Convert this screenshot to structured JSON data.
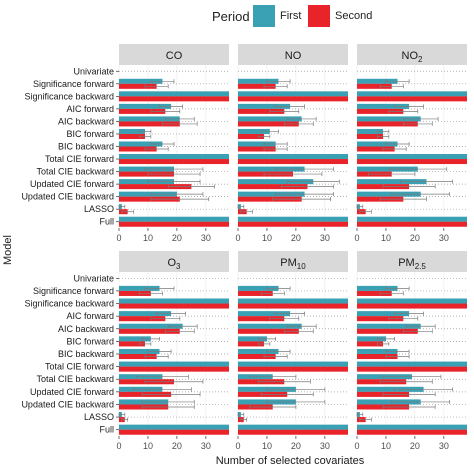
{
  "chart_data": {
    "type": "bar",
    "orientation": "horizontal",
    "legend": {
      "title": "Period",
      "placement": "top",
      "entries": [
        {
          "name": "First",
          "color": "#3aa0b4"
        },
        {
          "name": "Second",
          "color": "#e8242a"
        }
      ]
    },
    "ylabel": "Model",
    "xlabel": "Number of selected covariates",
    "xlim": [
      0,
      38
    ],
    "xticks": [
      "0",
      "10",
      "20",
      "30"
    ],
    "grid": true,
    "categories": [
      "Univariate",
      "Significance forward",
      "Significance backward",
      "AIC forward",
      "AIC backward",
      "BIC forward",
      "BIC backward",
      "Total CIE forward",
      "Total CIE backward",
      "Updated CIE forward",
      "Updated CIE backward",
      "LASSO",
      "Full"
    ],
    "panels": [
      {
        "title": "CO",
        "sub": "",
        "series": [
          {
            "name": "First",
            "values": [
              0,
              15,
              38,
              18,
              21,
              9,
              15,
              38,
              19,
              19,
              20,
              1,
              38
            ],
            "err": [
              0,
              4,
              0,
              4,
              5,
              2,
              4,
              0,
              10,
              9,
              9,
              1,
              0
            ]
          },
          {
            "name": "Second",
            "values": [
              0,
              13,
              38,
              16,
              21,
              9,
              13,
              38,
              19,
              25,
              21,
              3,
              38
            ],
            "err": [
              0,
              4,
              0,
              5,
              6,
              2,
              4,
              0,
              9,
              8,
              10,
              2,
              0
            ]
          }
        ]
      },
      {
        "title": "NO",
        "sub": "",
        "series": [
          {
            "name": "First",
            "values": [
              0,
              14,
              38,
              18,
              22,
              11,
              13,
              38,
              23,
              26,
              23,
              1,
              38
            ],
            "err": [
              0,
              4,
              0,
              5,
              5,
              3,
              4,
              0,
              10,
              9,
              10,
              1,
              0
            ]
          },
          {
            "name": "Second",
            "values": [
              0,
              13,
              38,
              16,
              21,
              9,
              13,
              38,
              19,
              24,
              22,
              3,
              38
            ],
            "err": [
              0,
              4,
              0,
              5,
              5,
              2,
              4,
              0,
              10,
              9,
              10,
              2,
              0
            ]
          }
        ]
      },
      {
        "title": "NO",
        "sub": "2",
        "series": [
          {
            "name": "First",
            "values": [
              0,
              14,
              38,
              18,
              22,
              9,
              14,
              38,
              21,
              24,
              22,
              1,
              38
            ],
            "err": [
              0,
              4,
              0,
              5,
              6,
              2,
              4,
              0,
              10,
              9,
              10,
              1,
              0
            ]
          },
          {
            "name": "Second",
            "values": [
              0,
              12,
              38,
              16,
              21,
              9,
              13,
              38,
              12,
              18,
              16,
              3,
              38
            ],
            "err": [
              0,
              4,
              0,
              5,
              5,
              2,
              4,
              0,
              8,
              9,
              8,
              2,
              0
            ]
          }
        ]
      },
      {
        "title": "O",
        "sub": "3",
        "series": [
          {
            "name": "First",
            "values": [
              0,
              14,
              38,
              18,
              22,
              11,
              14,
              38,
              15,
              15,
              17,
              1,
              38
            ],
            "err": [
              0,
              5,
              0,
              5,
              5,
              3,
              4,
              0,
              9,
              10,
              9,
              1,
              0
            ]
          },
          {
            "name": "Second",
            "values": [
              0,
              11,
              38,
              16,
              21,
              9,
              13,
              38,
              19,
              18,
              17,
              2,
              38
            ],
            "err": [
              0,
              4,
              0,
              5,
              5,
              2,
              4,
              0,
              10,
              10,
              9,
              1,
              0
            ]
          }
        ]
      },
      {
        "title": "PM",
        "sub": "10",
        "series": [
          {
            "name": "First",
            "values": [
              0,
              14,
              38,
              18,
              22,
              10,
              14,
              38,
              12,
              20,
              20,
              1,
              38
            ],
            "err": [
              0,
              4,
              0,
              5,
              5,
              3,
              4,
              0,
              8,
              10,
              10,
              1,
              0
            ]
          },
          {
            "name": "Second",
            "values": [
              0,
              12,
              38,
              16,
              21,
              9,
              13,
              38,
              16,
              17,
              12,
              2,
              38
            ],
            "err": [
              0,
              4,
              0,
              5,
              5,
              2,
              4,
              0,
              9,
              9,
              8,
              1,
              0
            ]
          }
        ]
      },
      {
        "title": "PM",
        "sub": "2.5",
        "series": [
          {
            "name": "First",
            "values": [
              0,
              14,
              38,
              18,
              22,
              10,
              14,
              38,
              19,
              23,
              22,
              1,
              38
            ],
            "err": [
              0,
              4,
              0,
              5,
              5,
              3,
              4,
              0,
              10,
              10,
              10,
              1,
              0
            ]
          },
          {
            "name": "Second",
            "values": [
              0,
              12,
              38,
              16,
              21,
              9,
              14,
              38,
              17,
              18,
              18,
              3,
              38
            ],
            "err": [
              0,
              4,
              0,
              5,
              5,
              2,
              4,
              0,
              9,
              9,
              9,
              2,
              0
            ]
          }
        ]
      }
    ]
  }
}
